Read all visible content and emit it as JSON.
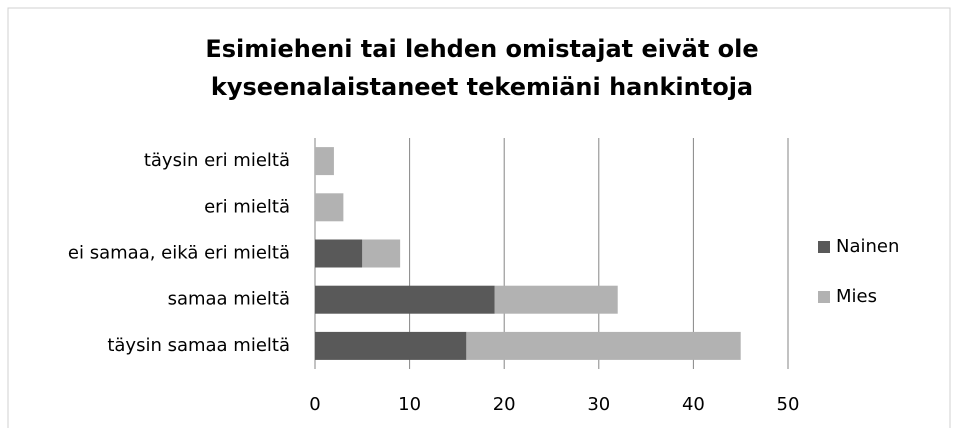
{
  "chart_data": {
    "type": "bar",
    "orientation": "horizontal",
    "stacked": true,
    "title": [
      "Esimieheni tai lehden omistajat eivät ole",
      "kyseenalaistaneet tekemiäni hankintoja"
    ],
    "categories": [
      "täysin eri mieltä",
      "eri mieltä",
      "ei samaa, eikä eri mieltä",
      "samaa mieltä",
      "täysin samaa mieltä"
    ],
    "series": [
      {
        "name": "Nainen",
        "color": "#595959",
        "values": [
          0,
          0,
          5,
          19,
          16
        ]
      },
      {
        "name": "Mies",
        "color": "#b2b2b2",
        "values": [
          2,
          3,
          4,
          13,
          29
        ]
      }
    ],
    "xlim": [
      0,
      50
    ],
    "xticks": [
      0,
      10,
      20,
      30,
      40,
      50
    ],
    "grid": true,
    "legend": "right"
  }
}
